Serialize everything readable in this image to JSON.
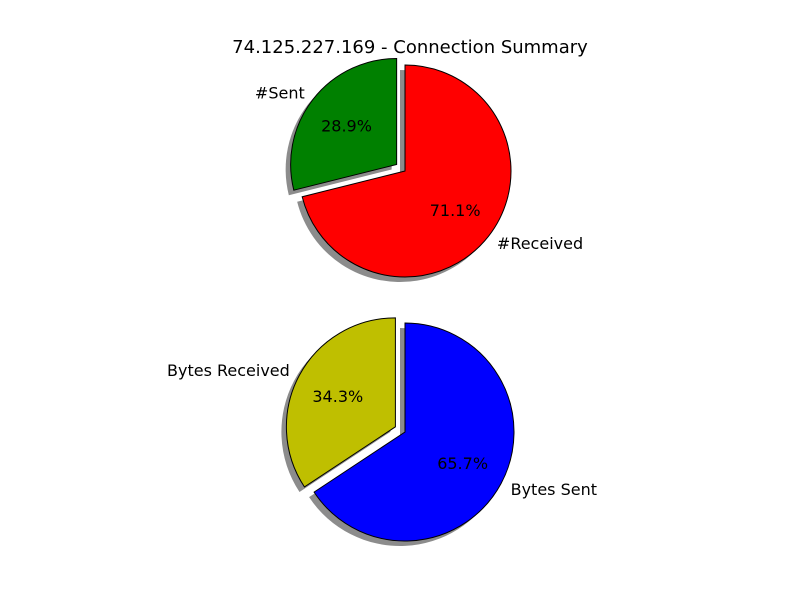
{
  "title": "74.125.227.169 - Connection Summary",
  "chart_data": [
    {
      "type": "pie",
      "slices": [
        {
          "label": "#Sent",
          "value": 28.9,
          "pct_label": "28.9%",
          "color": "#008000",
          "exploded": true
        },
        {
          "label": "#Received",
          "value": 71.1,
          "pct_label": "71.1%",
          "color": "#ff0000",
          "exploded": false
        }
      ],
      "shadow": true
    },
    {
      "type": "pie",
      "slices": [
        {
          "label": "Bytes Received",
          "value": 34.3,
          "pct_label": "34.3%",
          "color": "#bfbf00",
          "exploded": true
        },
        {
          "label": "Bytes Sent",
          "value": 65.7,
          "pct_label": "65.7%",
          "color": "#0000ff",
          "exploded": false
        }
      ],
      "shadow": true
    }
  ]
}
